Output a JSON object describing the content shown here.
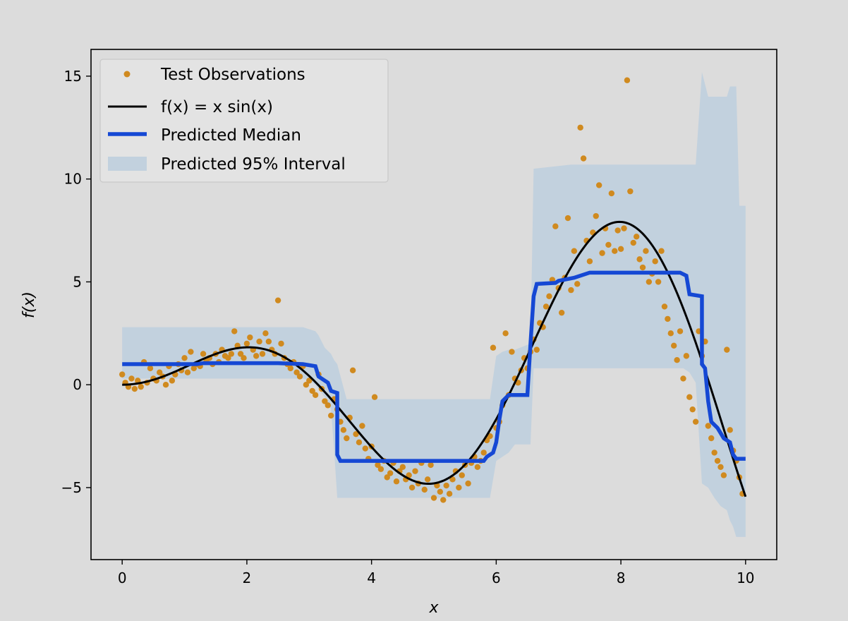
{
  "chart_data": {
    "type": "scatter",
    "xlabel": "x",
    "ylabel": "f(x)",
    "xlim": [
      -0.5,
      10.5
    ],
    "ylim": [
      -8.5,
      16.3
    ],
    "xticks": [
      0,
      2,
      4,
      6,
      8,
      10
    ],
    "yticks": [
      -5,
      0,
      5,
      10,
      15
    ],
    "xtick_labels": [
      "0",
      "2",
      "4",
      "6",
      "8",
      "10"
    ],
    "ytick_labels": [
      "−5",
      "0",
      "5",
      "10",
      "15"
    ],
    "grid": false,
    "legend_position": "top-left",
    "colors": {
      "observations": "#d08a1f",
      "true_function": "#000000",
      "median": "#1548d4",
      "interval": "#c2d1de",
      "background": "#dcdcdc"
    },
    "legend": [
      {
        "label": "Test Observations",
        "kind": "marker"
      },
      {
        "label": "f(x) = x sin(x)",
        "kind": "line"
      },
      {
        "label": "Predicted Median",
        "kind": "thick-line"
      },
      {
        "label": "Predicted 95% Interval",
        "kind": "patch"
      }
    ],
    "series": [
      {
        "name": "Test Observations",
        "kind": "scatter",
        "points": [
          [
            0.0,
            0.5
          ],
          [
            0.05,
            0.1
          ],
          [
            0.1,
            -0.1
          ],
          [
            0.15,
            0.3
          ],
          [
            0.2,
            -0.2
          ],
          [
            0.25,
            0.2
          ],
          [
            0.3,
            -0.1
          ],
          [
            0.35,
            1.1
          ],
          [
            0.4,
            0.1
          ],
          [
            0.45,
            0.8
          ],
          [
            0.5,
            0.3
          ],
          [
            0.55,
            0.2
          ],
          [
            0.6,
            0.6
          ],
          [
            0.65,
            0.4
          ],
          [
            0.7,
            0.0
          ],
          [
            0.75,
            0.9
          ],
          [
            0.8,
            0.2
          ],
          [
            0.85,
            0.5
          ],
          [
            0.9,
            1.0
          ],
          [
            0.95,
            0.7
          ],
          [
            1.0,
            1.3
          ],
          [
            1.05,
            0.6
          ],
          [
            1.1,
            1.6
          ],
          [
            1.15,
            0.8
          ],
          [
            1.2,
            1.0
          ],
          [
            1.25,
            0.9
          ],
          [
            1.3,
            1.5
          ],
          [
            1.35,
            1.2
          ],
          [
            1.4,
            1.3
          ],
          [
            1.45,
            1.0
          ],
          [
            1.5,
            1.5
          ],
          [
            1.55,
            1.1
          ],
          [
            1.6,
            1.7
          ],
          [
            1.65,
            1.4
          ],
          [
            1.7,
            1.3
          ],
          [
            1.75,
            1.5
          ],
          [
            1.8,
            2.6
          ],
          [
            1.85,
            1.9
          ],
          [
            1.9,
            1.5
          ],
          [
            1.95,
            1.3
          ],
          [
            2.0,
            2.0
          ],
          [
            2.05,
            2.3
          ],
          [
            2.1,
            1.7
          ],
          [
            2.15,
            1.4
          ],
          [
            2.2,
            2.1
          ],
          [
            2.25,
            1.5
          ],
          [
            2.3,
            2.5
          ],
          [
            2.35,
            2.1
          ],
          [
            2.4,
            1.7
          ],
          [
            2.45,
            1.5
          ],
          [
            2.5,
            4.1
          ],
          [
            2.55,
            2.0
          ],
          [
            2.6,
            1.3
          ],
          [
            2.65,
            1.0
          ],
          [
            2.7,
            0.8
          ],
          [
            2.75,
            1.1
          ],
          [
            2.8,
            0.6
          ],
          [
            2.85,
            0.4
          ],
          [
            2.9,
            0.9
          ],
          [
            2.95,
            0.0
          ],
          [
            3.0,
            0.2
          ],
          [
            3.05,
            -0.3
          ],
          [
            3.1,
            -0.5
          ],
          [
            3.15,
            0.5
          ],
          [
            3.2,
            -0.2
          ],
          [
            3.25,
            -0.8
          ],
          [
            3.3,
            -1.0
          ],
          [
            3.35,
            -1.5
          ],
          [
            3.4,
            -0.7
          ],
          [
            3.45,
            -1.2
          ],
          [
            3.5,
            -1.8
          ],
          [
            3.55,
            -2.2
          ],
          [
            3.6,
            -2.6
          ],
          [
            3.65,
            -1.6
          ],
          [
            3.7,
            0.7
          ],
          [
            3.75,
            -2.4
          ],
          [
            3.8,
            -2.8
          ],
          [
            3.85,
            -2.0
          ],
          [
            3.9,
            -3.1
          ],
          [
            3.95,
            -3.6
          ],
          [
            4.0,
            -3.0
          ],
          [
            4.05,
            -0.6
          ],
          [
            4.1,
            -3.9
          ],
          [
            4.15,
            -4.1
          ],
          [
            4.2,
            -3.7
          ],
          [
            4.25,
            -4.5
          ],
          [
            4.3,
            -4.3
          ],
          [
            4.35,
            -3.8
          ],
          [
            4.4,
            -4.7
          ],
          [
            4.45,
            -4.2
          ],
          [
            4.5,
            -4.0
          ],
          [
            4.55,
            -4.6
          ],
          [
            4.6,
            -4.4
          ],
          [
            4.65,
            -5.0
          ],
          [
            4.7,
            -4.2
          ],
          [
            4.75,
            -4.8
          ],
          [
            4.8,
            -3.8
          ],
          [
            4.85,
            -5.1
          ],
          [
            4.9,
            -4.6
          ],
          [
            4.95,
            -3.9
          ],
          [
            5.0,
            -5.5
          ],
          [
            5.05,
            -4.9
          ],
          [
            5.1,
            -5.2
          ],
          [
            5.15,
            -5.6
          ],
          [
            5.2,
            -4.9
          ],
          [
            5.25,
            -5.3
          ],
          [
            5.3,
            -4.6
          ],
          [
            5.35,
            -4.2
          ],
          [
            5.4,
            -5.0
          ],
          [
            5.45,
            -4.4
          ],
          [
            5.5,
            -3.9
          ],
          [
            5.55,
            -4.8
          ],
          [
            5.6,
            -3.8
          ],
          [
            5.65,
            -3.5
          ],
          [
            5.7,
            -4.0
          ],
          [
            5.75,
            -3.7
          ],
          [
            5.8,
            -3.3
          ],
          [
            5.85,
            -2.7
          ],
          [
            5.9,
            -2.5
          ],
          [
            5.95,
            1.8
          ],
          [
            6.0,
            -2.1
          ],
          [
            6.05,
            -1.8
          ],
          [
            6.1,
            -1.0
          ],
          [
            6.15,
            2.5
          ],
          [
            6.2,
            -0.5
          ],
          [
            6.25,
            1.6
          ],
          [
            6.3,
            0.3
          ],
          [
            6.35,
            0.1
          ],
          [
            6.4,
            0.7
          ],
          [
            6.45,
            1.3
          ],
          [
            6.5,
            0.8
          ],
          [
            6.55,
            1.6
          ],
          [
            6.6,
            2.2
          ],
          [
            6.65,
            1.7
          ],
          [
            6.7,
            3.0
          ],
          [
            6.75,
            2.8
          ],
          [
            6.8,
            3.8
          ],
          [
            6.85,
            4.3
          ],
          [
            6.9,
            5.1
          ],
          [
            6.95,
            7.7
          ],
          [
            7.0,
            4.7
          ],
          [
            7.05,
            3.5
          ],
          [
            7.1,
            5.2
          ],
          [
            7.15,
            8.1
          ],
          [
            7.2,
            4.6
          ],
          [
            7.25,
            6.5
          ],
          [
            7.3,
            4.9
          ],
          [
            7.35,
            12.5
          ],
          [
            7.4,
            11.0
          ],
          [
            7.45,
            7.0
          ],
          [
            7.5,
            6.0
          ],
          [
            7.55,
            7.4
          ],
          [
            7.6,
            8.2
          ],
          [
            7.65,
            9.7
          ],
          [
            7.7,
            6.4
          ],
          [
            7.75,
            7.6
          ],
          [
            7.8,
            6.8
          ],
          [
            7.85,
            9.3
          ],
          [
            7.9,
            6.5
          ],
          [
            7.95,
            7.5
          ],
          [
            8.0,
            6.6
          ],
          [
            8.05,
            7.6
          ],
          [
            8.1,
            14.8
          ],
          [
            8.15,
            9.4
          ],
          [
            8.2,
            6.9
          ],
          [
            8.25,
            7.2
          ],
          [
            8.3,
            6.1
          ],
          [
            8.35,
            5.7
          ],
          [
            8.4,
            6.5
          ],
          [
            8.45,
            5.0
          ],
          [
            8.5,
            5.4
          ],
          [
            8.55,
            6.0
          ],
          [
            8.6,
            5.0
          ],
          [
            8.65,
            6.5
          ],
          [
            8.7,
            3.8
          ],
          [
            8.75,
            3.2
          ],
          [
            8.8,
            2.5
          ],
          [
            8.85,
            1.9
          ],
          [
            8.9,
            1.2
          ],
          [
            8.95,
            2.6
          ],
          [
            9.0,
            0.3
          ],
          [
            9.05,
            1.4
          ],
          [
            9.1,
            -0.6
          ],
          [
            9.15,
            -1.2
          ],
          [
            9.2,
            -1.8
          ],
          [
            9.25,
            2.6
          ],
          [
            9.3,
            1.4
          ],
          [
            9.35,
            2.1
          ],
          [
            9.4,
            -2.0
          ],
          [
            9.45,
            -2.6
          ],
          [
            9.5,
            -3.3
          ],
          [
            9.55,
            -3.7
          ],
          [
            9.6,
            -4.0
          ],
          [
            9.65,
            -4.4
          ],
          [
            9.7,
            1.7
          ],
          [
            9.75,
            -2.2
          ],
          [
            9.8,
            -3.2
          ],
          [
            9.85,
            -3.7
          ],
          [
            9.9,
            -4.5
          ],
          [
            9.95,
            -5.3
          ]
        ]
      },
      {
        "name": "f(x) = x sin(x)",
        "kind": "function",
        "function": "x*sin(x)",
        "domain": [
          0,
          10
        ]
      },
      {
        "name": "Predicted Median",
        "kind": "step",
        "points": [
          [
            0.0,
            1.0
          ],
          [
            1.2,
            1.0
          ],
          [
            1.3,
            1.05
          ],
          [
            2.5,
            1.05
          ],
          [
            2.9,
            1.0
          ],
          [
            3.1,
            0.9
          ],
          [
            3.15,
            0.4
          ],
          [
            3.3,
            0.1
          ],
          [
            3.35,
            -0.3
          ],
          [
            3.45,
            -0.4
          ],
          [
            3.45,
            -3.4
          ],
          [
            3.5,
            -3.7
          ],
          [
            5.8,
            -3.7
          ],
          [
            5.85,
            -3.5
          ],
          [
            5.95,
            -3.3
          ],
          [
            6.0,
            -2.8
          ],
          [
            6.05,
            -1.7
          ],
          [
            6.1,
            -0.8
          ],
          [
            6.2,
            -0.5
          ],
          [
            6.5,
            -0.5
          ],
          [
            6.55,
            2.0
          ],
          [
            6.6,
            4.3
          ],
          [
            6.65,
            4.9
          ],
          [
            6.95,
            4.95
          ],
          [
            7.0,
            5.05
          ],
          [
            7.25,
            5.2
          ],
          [
            7.5,
            5.45
          ],
          [
            8.95,
            5.45
          ],
          [
            9.05,
            5.3
          ],
          [
            9.1,
            4.4
          ],
          [
            9.3,
            4.3
          ],
          [
            9.3,
            1.0
          ],
          [
            9.35,
            0.8
          ],
          [
            9.4,
            -0.8
          ],
          [
            9.45,
            -1.8
          ],
          [
            9.55,
            -2.1
          ],
          [
            9.65,
            -2.6
          ],
          [
            9.75,
            -2.8
          ],
          [
            9.8,
            -3.4
          ],
          [
            9.85,
            -3.6
          ],
          [
            10.0,
            -3.6
          ]
        ]
      },
      {
        "name": "Predicted 95% Interval",
        "kind": "band",
        "x": [
          0.0,
          1.0,
          2.0,
          2.9,
          3.0,
          3.1,
          3.15,
          3.25,
          3.35,
          3.4,
          3.45,
          3.6,
          5.9,
          6.0,
          6.1,
          6.2,
          6.3,
          6.55,
          6.6,
          7.2,
          7.5,
          8.0,
          8.5,
          8.9,
          9.0,
          9.1,
          9.2,
          9.3,
          9.4,
          9.5,
          9.6,
          9.7,
          9.75,
          9.8,
          9.85,
          9.9,
          10.0
        ],
        "upper": [
          2.8,
          2.8,
          2.8,
          2.8,
          2.7,
          2.6,
          2.4,
          1.8,
          1.5,
          1.2,
          1.0,
          -0.7,
          -0.7,
          1.4,
          1.6,
          1.7,
          1.7,
          2.0,
          10.5,
          10.7,
          10.7,
          10.7,
          10.7,
          10.7,
          10.7,
          10.7,
          10.7,
          15.2,
          14.0,
          14.0,
          14.0,
          14.0,
          14.5,
          14.5,
          14.5,
          8.7,
          8.7
        ],
        "lower": [
          0.3,
          0.3,
          0.3,
          0.3,
          0.2,
          0.0,
          -0.2,
          -0.6,
          -1.2,
          -3.2,
          -5.5,
          -5.5,
          -5.5,
          -3.7,
          -3.5,
          -3.3,
          -2.9,
          -2.9,
          0.8,
          0.8,
          0.8,
          0.8,
          0.8,
          0.8,
          0.8,
          0.6,
          0.1,
          -4.8,
          -5.0,
          -5.5,
          -5.9,
          -6.1,
          -6.6,
          -6.9,
          -7.4,
          -7.4,
          -7.4
        ]
      }
    ]
  }
}
